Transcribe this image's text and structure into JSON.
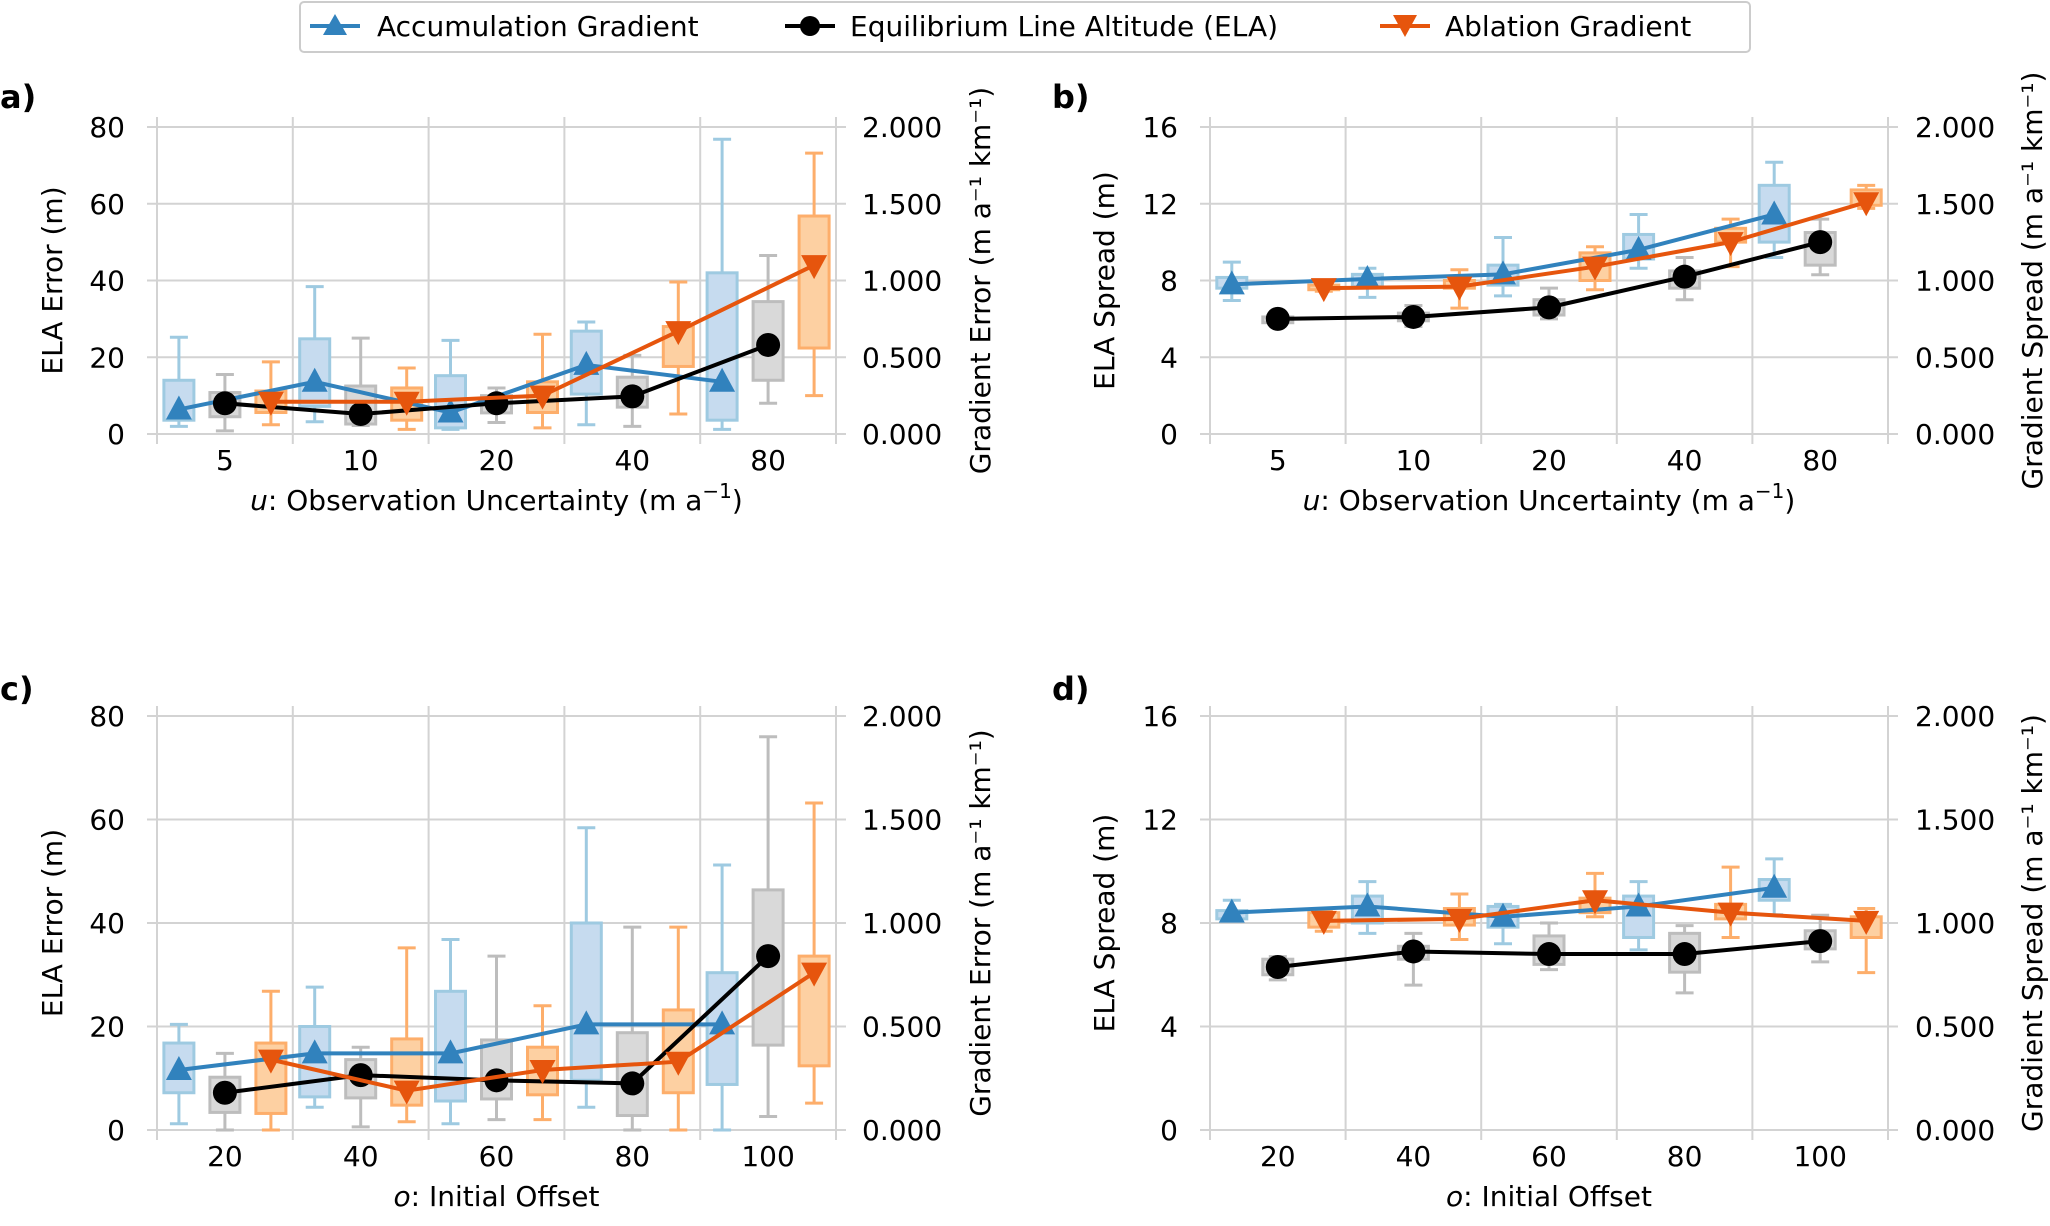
{
  "legend": {
    "entries": [
      {
        "label": "Accumulation Gradient",
        "color": "#3182bd",
        "marker": "triangle-up"
      },
      {
        "label": "Equilibrium Line Altitude (ELA)",
        "color": "#000000",
        "marker": "circle"
      },
      {
        "label": "Ablation Gradient",
        "color": "#e6550d",
        "marker": "triangle-down"
      }
    ]
  },
  "colors": {
    "acc_line": "#3182bd",
    "acc_box_fill": "#c6dbef",
    "acc_box_edge": "#9ecae1",
    "ela_line": "#000000",
    "ela_box_fill": "#d9d9d9",
    "ela_box_edge": "#bdbdbd",
    "abl_line": "#e6550d",
    "abl_box_fill": "#fdd0a2",
    "abl_box_edge": "#fdae6b",
    "grid": "#d3d3d3"
  },
  "chart_data": [
    {
      "panel": "a)",
      "type": "box+line",
      "categories": [
        "5",
        "10",
        "20",
        "40",
        "80"
      ],
      "xlabel_var": "u",
      "xlabel": ": Observation Uncertainty (m a",
      "xlabel_sup": "−1",
      "xlabel_end": ")",
      "ylabel": "ELA Error (m)",
      "ylim": [
        0,
        80
      ],
      "yticks": [
        "0",
        "20",
        "40",
        "60",
        "80"
      ],
      "y2label": "Gradient Error (m a⁻¹ km⁻¹)",
      "y2lim": [
        0,
        2.0
      ],
      "y2ticks": [
        "0.000",
        "0.500",
        "1.000",
        "1.500",
        "2.000"
      ],
      "grid": true,
      "series": [
        {
          "name": "Accumulation Gradient",
          "axis": "right",
          "values": [
            0.16,
            0.34,
            0.14,
            0.45,
            0.34
          ],
          "boxes": [
            [
              0.05,
              0.09,
              0.16,
              0.35,
              0.63
            ],
            [
              0.08,
              0.18,
              0.25,
              0.62,
              0.96
            ],
            [
              0.03,
              0.04,
              0.14,
              0.38,
              0.61
            ],
            [
              0.06,
              0.26,
              0.45,
              0.67,
              0.73
            ],
            [
              0.03,
              0.09,
              0.34,
              1.05,
              1.92
            ]
          ]
        },
        {
          "name": "Equilibrium Line Altitude (ELA)",
          "axis": "left",
          "values": [
            8.0,
            5.2,
            8.0,
            9.8,
            23.2
          ],
          "boxes": [
            [
              0.8,
              4.5,
              8.0,
              10.8,
              15.5
            ],
            [
              2.2,
              2.6,
              5.2,
              12.5,
              25.0
            ],
            [
              3.0,
              5.5,
              8.0,
              10.0,
              12.0
            ],
            [
              2.0,
              7.0,
              9.8,
              14.8,
              20.5
            ],
            [
              8.0,
              14.0,
              23.2,
              34.5,
              46.5
            ]
          ]
        },
        {
          "name": "Ablation Gradient",
          "axis": "right",
          "values": [
            0.21,
            0.21,
            0.25,
            0.67,
            1.1
          ],
          "boxes": [
            [
              0.06,
              0.14,
              0.21,
              0.28,
              0.47
            ],
            [
              0.03,
              0.09,
              0.21,
              0.3,
              0.43
            ],
            [
              0.04,
              0.14,
              0.25,
              0.34,
              0.65
            ],
            [
              0.13,
              0.44,
              0.67,
              0.7,
              0.99
            ],
            [
              0.25,
              0.56,
              1.1,
              1.42,
              1.83
            ]
          ]
        }
      ]
    },
    {
      "panel": "b)",
      "type": "box+line",
      "categories": [
        "5",
        "10",
        "20",
        "40",
        "80"
      ],
      "xlabel_var": "u",
      "xlabel": ": Observation Uncertainty (m a",
      "xlabel_sup": "−1",
      "xlabel_end": ")",
      "ylabel": "ELA Spread (m)",
      "ylim": [
        0,
        16
      ],
      "yticks": [
        "0",
        "4",
        "8",
        "12",
        "16"
      ],
      "y2label": "Gradient Spread (m a⁻¹ km⁻¹)",
      "y2lim": [
        0,
        2.0
      ],
      "y2ticks": [
        "0.000",
        "0.500",
        "1.000",
        "1.500",
        "2.000"
      ],
      "grid": true,
      "series": [
        {
          "name": "Accumulation Gradient",
          "axis": "right",
          "values": [
            0.975,
            1.01,
            1.04,
            1.2,
            1.43
          ],
          "boxes": [
            [
              0.87,
              0.95,
              0.975,
              1.02,
              1.12
            ],
            [
              0.89,
              0.96,
              1.01,
              1.04,
              1.08
            ],
            [
              0.9,
              0.97,
              1.04,
              1.1,
              1.28
            ],
            [
              1.08,
              1.14,
              1.2,
              1.3,
              1.43
            ],
            [
              1.15,
              1.25,
              1.43,
              1.62,
              1.77
            ]
          ]
        },
        {
          "name": "Equilibrium Line Altitude (ELA)",
          "axis": "left",
          "values": [
            6.0,
            6.1,
            6.6,
            8.2,
            10.0
          ],
          "boxes": [
            [
              5.7,
              5.8,
              6.0,
              6.1,
              6.2
            ],
            [
              5.6,
              5.9,
              6.1,
              6.3,
              6.7
            ],
            [
              6.0,
              6.2,
              6.6,
              7.0,
              7.6
            ],
            [
              7.0,
              7.6,
              8.2,
              8.5,
              9.2
            ],
            [
              8.3,
              8.8,
              10.0,
              10.5,
              11.2
            ]
          ]
        },
        {
          "name": "Ablation Gradient",
          "axis": "right",
          "values": [
            0.95,
            0.96,
            1.09,
            1.25,
            1.51
          ],
          "boxes": [
            [
              0.93,
              0.94,
              0.95,
              0.97,
              0.99
            ],
            [
              0.82,
              0.95,
              0.96,
              1.0,
              1.07
            ],
            [
              0.94,
              1.0,
              1.09,
              1.18,
              1.22
            ],
            [
              1.09,
              1.25,
              1.25,
              1.34,
              1.4
            ],
            [
              1.47,
              1.49,
              1.51,
              1.59,
              1.62
            ]
          ]
        }
      ]
    },
    {
      "panel": "c)",
      "type": "box+line",
      "categories": [
        "20",
        "40",
        "60",
        "80",
        "100"
      ],
      "xlabel_var": "o",
      "xlabel": ": Initial Offset",
      "xlabel_sup": "",
      "xlabel_end": "",
      "ylabel": "ELA Error (m)",
      "ylim": [
        0,
        80
      ],
      "yticks": [
        "0",
        "20",
        "40",
        "60",
        "80"
      ],
      "y2label": "Gradient Error (m a⁻¹ km⁻¹)",
      "y2lim": [
        0,
        2.0
      ],
      "y2ticks": [
        "0.000",
        "0.500",
        "1.000",
        "1.500",
        "2.000"
      ],
      "grid": true,
      "series": [
        {
          "name": "Accumulation Gradient",
          "axis": "right",
          "values": [
            0.29,
            0.37,
            0.37,
            0.51,
            0.51
          ],
          "boxes": [
            [
              0.03,
              0.18,
              0.29,
              0.42,
              0.51
            ],
            [
              0.11,
              0.16,
              0.37,
              0.5,
              0.69
            ],
            [
              0.03,
              0.14,
              0.37,
              0.67,
              0.92
            ],
            [
              0.11,
              0.24,
              0.51,
              1.0,
              1.46
            ],
            [
              0.0,
              0.22,
              0.51,
              0.76,
              1.28
            ]
          ]
        },
        {
          "name": "Equilibrium Line Altitude (ELA)",
          "axis": "left",
          "values": [
            7.2,
            10.6,
            9.6,
            9.0,
            33.6
          ],
          "boxes": [
            [
              0.0,
              3.4,
              7.2,
              10.2,
              14.8
            ],
            [
              0.6,
              6.2,
              10.6,
              13.6,
              16.0
            ],
            [
              2.0,
              6.0,
              9.6,
              17.4,
              33.6
            ],
            [
              0.0,
              2.8,
              9.0,
              18.8,
              39.2
            ],
            [
              2.6,
              16.4,
              33.6,
              46.4,
              76.0
            ]
          ]
        },
        {
          "name": "Ablation Gradient",
          "axis": "right",
          "values": [
            0.34,
            0.19,
            0.29,
            0.33,
            0.76
          ],
          "boxes": [
            [
              0.0,
              0.08,
              0.34,
              0.42,
              0.67
            ],
            [
              0.04,
              0.12,
              0.19,
              0.44,
              0.88
            ],
            [
              0.05,
              0.17,
              0.29,
              0.4,
              0.6
            ],
            [
              0.0,
              0.18,
              0.33,
              0.58,
              0.98
            ],
            [
              0.13,
              0.31,
              0.76,
              0.84,
              1.58
            ]
          ]
        }
      ]
    },
    {
      "panel": "d)",
      "type": "box+line",
      "categories": [
        "20",
        "40",
        "60",
        "80",
        "100"
      ],
      "xlabel_var": "o",
      "xlabel": ": Initial Offset",
      "xlabel_sup": "",
      "xlabel_end": "",
      "ylabel": "ELA Spread (m)",
      "ylim": [
        0,
        16
      ],
      "yticks": [
        "0",
        "4",
        "8",
        "12",
        "16"
      ],
      "y2label": "Gradient Spread (m a⁻¹ km⁻¹)",
      "y2lim": [
        0,
        2.0
      ],
      "y2ticks": [
        "0.000",
        "0.500",
        "1.000",
        "1.500",
        "2.000"
      ],
      "grid": true,
      "series": [
        {
          "name": "Accumulation Gradient",
          "axis": "right",
          "values": [
            1.05,
            1.08,
            1.03,
            1.08,
            1.17
          ],
          "boxes": [
            [
              1.01,
              1.02,
              1.05,
              1.06,
              1.11
            ],
            [
              0.95,
              1.0,
              1.08,
              1.13,
              1.2
            ],
            [
              0.9,
              0.98,
              1.03,
              1.08,
              1.09
            ],
            [
              0.87,
              0.93,
              1.08,
              1.13,
              1.2
            ],
            [
              1.04,
              1.11,
              1.17,
              1.21,
              1.31
            ]
          ]
        },
        {
          "name": "Equilibrium Line Altitude (ELA)",
          "axis": "left",
          "values": [
            6.3,
            6.9,
            6.8,
            6.8,
            7.3
          ],
          "boxes": [
            [
              5.8,
              6.0,
              6.3,
              6.6,
              6.7
            ],
            [
              5.6,
              6.6,
              6.9,
              7.1,
              7.6
            ],
            [
              6.2,
              6.4,
              6.8,
              7.5,
              8.0
            ],
            [
              5.3,
              6.1,
              6.8,
              7.6,
              7.9
            ],
            [
              6.5,
              7.0,
              7.3,
              7.7,
              8.3
            ]
          ]
        },
        {
          "name": "Ablation Gradient",
          "axis": "right",
          "values": [
            1.01,
            1.02,
            1.11,
            1.05,
            1.01
          ],
          "boxes": [
            [
              0.96,
              0.98,
              1.01,
              1.05,
              1.06
            ],
            [
              0.92,
              0.99,
              1.02,
              1.07,
              1.14
            ],
            [
              1.03,
              1.05,
              1.11,
              1.12,
              1.24
            ],
            [
              0.93,
              1.02,
              1.05,
              1.09,
              1.27
            ],
            [
              0.76,
              0.93,
              1.01,
              1.03,
              1.07
            ]
          ]
        }
      ]
    }
  ]
}
